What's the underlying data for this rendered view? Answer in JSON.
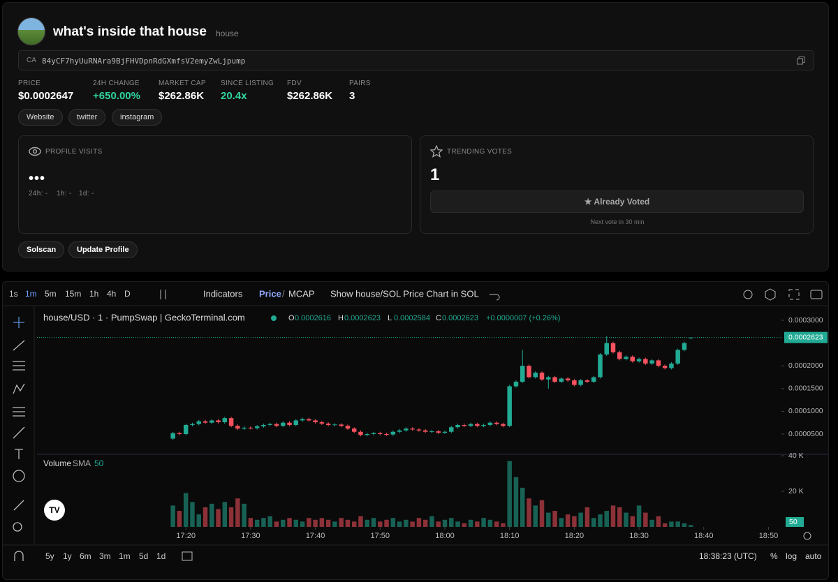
{
  "header": {
    "name": "what's inside that house",
    "ticker": "house",
    "ca_label": "CA",
    "ca": "84yCF7hyUuRNAra9BjFHVDpnRdGXmfsV2emyZwLjpump"
  },
  "stats": [
    {
      "label": "PRICE",
      "value": "$0.0002647"
    },
    {
      "label": "24H CHANGE",
      "value": "+650.00%"
    },
    {
      "label": "MARKET CAP",
      "value": "$262.86K"
    },
    {
      "label": "SINCE LISTING",
      "value": "20.4x"
    },
    {
      "label": "FDV",
      "value": "$262.86K"
    },
    {
      "label": "PAIRS",
      "value": "3"
    }
  ],
  "links": [
    "Website",
    "twitter",
    "instagram"
  ],
  "profile_visits": {
    "title": "PROFILE VISITS",
    "value": "•••",
    "stats": [
      "24h: -",
      "1h: -",
      "1d: -"
    ]
  },
  "trending_votes": {
    "title": "TRENDING VOTES",
    "value": "1",
    "button": "Already Voted",
    "note": "Next vote in 30 min"
  },
  "actions": [
    "Solscan",
    "Update Profile"
  ],
  "chart_toolbar": {
    "intervals": [
      "1s",
      "1m",
      "5m",
      "15m",
      "1h",
      "4h",
      "D"
    ],
    "indicators": "Indicators",
    "price": "Price",
    "separator": "/",
    "mcap": "MCAP",
    "toggle": "Show house/SOL Price Chart in SOL"
  },
  "chart_footer": {
    "ranges": [
      "5y",
      "1y",
      "6m",
      "3m",
      "1m",
      "5d",
      "1d"
    ],
    "time": "18:38:23 (UTC)",
    "percent": "%",
    "log": "log",
    "auto": "auto"
  },
  "chart_data": {
    "type": "candlestick",
    "title": "house/USD · 1 · PumpSwap | GeckoTerminal.com",
    "ohlc": [
      {
        "label": "O",
        "value": "0.0002616"
      },
      {
        "label": "H",
        "value": "0.0002623"
      },
      {
        "label": "L",
        "value": "0.0002584"
      },
      {
        "label": "C",
        "value": "0.0002623"
      }
    ],
    "change": "+0.0000007 (+0.26%)",
    "up_color": "#22ab94",
    "down_color": "#f7525f",
    "last_price_label": "0.0002623",
    "x": [
      "17:18",
      "17:19",
      "17:20",
      "17:21",
      "17:22",
      "17:23",
      "17:24",
      "17:25",
      "17:26",
      "17:27",
      "17:28",
      "17:29",
      "17:30",
      "17:31",
      "17:32",
      "17:33",
      "17:34",
      "17:35",
      "17:36",
      "17:37",
      "17:38",
      "17:39",
      "17:40",
      "17:41",
      "17:42",
      "17:43",
      "17:44",
      "17:45",
      "17:46",
      "17:47",
      "17:48",
      "17:49",
      "17:50",
      "17:51",
      "17:52",
      "17:53",
      "17:54",
      "17:55",
      "17:56",
      "17:57",
      "17:58",
      "17:59",
      "18:00",
      "18:01",
      "18:02",
      "18:03",
      "18:04",
      "18:05",
      "18:06",
      "18:07",
      "18:08",
      "18:09",
      "18:10",
      "18:11",
      "18:12",
      "18:13",
      "18:14",
      "18:15",
      "18:16",
      "18:17",
      "18:18",
      "18:19",
      "18:20",
      "18:21",
      "18:22",
      "18:23",
      "18:24",
      "18:25",
      "18:26",
      "18:27",
      "18:28",
      "18:29",
      "18:30",
      "18:31",
      "18:32",
      "18:33",
      "18:34",
      "18:35",
      "18:36",
      "18:37",
      "18:38"
    ],
    "open": [
      4e-05,
      5.2e-05,
      5e-05,
      7e-05,
      7.2e-05,
      7.8e-05,
      7.5e-05,
      8e-05,
      7.6e-05,
      8.5e-05,
      6.8e-05,
      6.2e-05,
      6.4e-05,
      6.3e-05,
      6.7e-05,
      7e-05,
      7.2e-05,
      6.8e-05,
      7.5e-05,
      7e-05,
      8e-05,
      8.3e-05,
      8e-05,
      7.6e-05,
      7.3e-05,
      7e-05,
      7.1e-05,
      6.8e-05,
      6.2e-05,
      5.5e-05,
      4.8e-05,
      5e-05,
      5.2e-05,
      5e-05,
      4.9e-05,
      5.5e-05,
      5.8e-05,
      6.2e-05,
      6e-05,
      5.8e-05,
      5.5e-05,
      5.6e-05,
      5.3e-05,
      5.5e-05,
      6.5e-05,
      7e-05,
      6.8e-05,
      7.2e-05,
      6.8e-05,
      7e-05,
      7.5e-05,
      7.2e-05,
      6.8e-05,
      0.000155,
      0.000165,
      0.0002,
      0.000175,
      0.000185,
      0.00017,
      0.000175,
      0.000165,
      0.000172,
      0.000168,
      0.000158,
      0.000168,
      0.000165,
      0.000175,
      0.000225,
      0.00025,
      0.00023,
      0.000215,
      0.00022,
      0.00021,
      0.000215,
      0.000205,
      0.000212,
      0.0002,
      0.000195,
      0.000205,
      0.000235,
      0.0002616
    ],
    "high": [
      5.5e-05,
      5.5e-05,
      7.3e-05,
      7.5e-05,
      8.1e-05,
      8.1e-05,
      8.3e-05,
      8.3e-05,
      8.8e-05,
      8.8e-05,
      7.1e-05,
      6.7e-05,
      6.7e-05,
      7e-05,
      7.3e-05,
      7.5e-05,
      7.5e-05,
      7.8e-05,
      7.8e-05,
      8.3e-05,
      8.6e-05,
      8.6e-05,
      8.3e-05,
      7.9e-05,
      7.6e-05,
      7.4e-05,
      7.4e-05,
      7.1e-05,
      6.5e-05,
      5.8e-05,
      5.3e-05,
      5.5e-05,
      5.5e-05,
      5.3e-05,
      5.8e-05,
      6.1e-05,
      6.5e-05,
      6.5e-05,
      6.3e-05,
      6.1e-05,
      5.9e-05,
      5.9e-05,
      5.8e-05,
      6.8e-05,
      7.3e-05,
      7.3e-05,
      7.5e-05,
      7.5e-05,
      7.3e-05,
      7.8e-05,
      7.8e-05,
      7.5e-05,
      0.000158,
      0.000168,
      0.000235,
      0.000203,
      0.000188,
      0.000188,
      0.000178,
      0.000178,
      0.000175,
      0.000175,
      0.000171,
      0.000171,
      0.000171,
      0.000178,
      0.000228,
      0.000265,
      0.000253,
      0.000233,
      0.000223,
      0.000223,
      0.000218,
      0.000218,
      0.000215,
      0.000215,
      0.000203,
      0.000208,
      0.000238,
      0.000253,
      0.0002623
    ],
    "low": [
      3.7e-05,
      4.7e-05,
      4.7e-05,
      6.7e-05,
      6.9e-05,
      7.2e-05,
      7.2e-05,
      7.3e-05,
      7.3e-05,
      6.5e-05,
      5.9e-05,
      5.9e-05,
      6e-05,
      6e-05,
      6.4e-05,
      6.7e-05,
      6.5e-05,
      6.5e-05,
      6.7e-05,
      6.7e-05,
      7.7e-05,
      7.7e-05,
      7.3e-05,
      7e-05,
      6.7e-05,
      6.7e-05,
      6.5e-05,
      5.9e-05,
      5.2e-05,
      4.5e-05,
      4.5e-05,
      4.7e-05,
      4.7e-05,
      4.6e-05,
      4.6e-05,
      5.2e-05,
      5.5e-05,
      5.7e-05,
      5.5e-05,
      5.2e-05,
      5.2e-05,
      5e-05,
      5e-05,
      5.2e-05,
      6.2e-05,
      6.5e-05,
      6.5e-05,
      6.5e-05,
      6.5e-05,
      6.7e-05,
      6.9e-05,
      6.5e-05,
      6.5e-05,
      0.000152,
      0.000162,
      0.000172,
      0.000172,
      0.000167,
      0.00015,
      0.000162,
      0.000162,
      0.000165,
      0.000155,
      0.000155,
      0.000162,
      0.000162,
      0.000172,
      0.000222,
      0.000227,
      0.000212,
      0.000212,
      0.000207,
      0.000207,
      0.000202,
      0.000202,
      0.000197,
      0.000192,
      0.000192,
      0.000202,
      0.000232,
      0.0002584
    ],
    "close": [
      5.2e-05,
      5e-05,
      7e-05,
      7.2e-05,
      7.8e-05,
      7.5e-05,
      8e-05,
      7.6e-05,
      8.5e-05,
      6.8e-05,
      6.2e-05,
      6.4e-05,
      6.3e-05,
      6.7e-05,
      7e-05,
      7.2e-05,
      6.8e-05,
      7.5e-05,
      7e-05,
      8e-05,
      8.3e-05,
      8e-05,
      7.6e-05,
      7.3e-05,
      7e-05,
      7.1e-05,
      6.8e-05,
      6.2e-05,
      5.5e-05,
      4.8e-05,
      5e-05,
      5.2e-05,
      5e-05,
      4.9e-05,
      5.5e-05,
      5.8e-05,
      6.2e-05,
      6e-05,
      5.8e-05,
      5.5e-05,
      5.6e-05,
      5.3e-05,
      5.5e-05,
      6.5e-05,
      7e-05,
      6.8e-05,
      7.2e-05,
      6.8e-05,
      7e-05,
      7.5e-05,
      7.2e-05,
      6.8e-05,
      0.000155,
      0.000165,
      0.0002,
      0.000175,
      0.000185,
      0.00017,
      0.000175,
      0.000165,
      0.000172,
      0.000168,
      0.000158,
      0.000168,
      0.000165,
      0.000175,
      0.000225,
      0.00025,
      0.00023,
      0.000215,
      0.00022,
      0.00021,
      0.000215,
      0.000205,
      0.000212,
      0.0002,
      0.000195,
      0.000205,
      0.000235,
      0.00025,
      0.0002623
    ],
    "xlim": [
      "16:57",
      "18:52"
    ],
    "xticks": [
      "17:20",
      "17:30",
      "17:40",
      "17:50",
      "18:00",
      "18:10",
      "18:20",
      "18:30",
      "18:40",
      "18:50"
    ],
    "ylim": [
      5.5e-06,
      0.00032
    ],
    "yticks": [
      {
        "value": 5e-05,
        "label": "0.0000500"
      },
      {
        "value": 0.0001,
        "label": "0.0001000"
      },
      {
        "value": 0.00015,
        "label": "0.0001500"
      },
      {
        "value": 0.0002,
        "label": "0.0002000"
      },
      {
        "value": 0.0003,
        "label": "0.0003000"
      }
    ],
    "volume": {
      "name": "Volume",
      "sma": "SMA",
      "sma_length": "50",
      "last_label": "50",
      "ylim": [
        0,
        40800
      ],
      "yticks": [
        {
          "value": 20000,
          "label": "20 K"
        },
        {
          "value": 40000,
          "label": "40 K"
        }
      ],
      "values": [
        12000,
        9000,
        19000,
        14000,
        7000,
        11000,
        13000,
        10000,
        14000,
        11000,
        16000,
        13000,
        5000,
        4000,
        5000,
        6000,
        3000,
        4000,
        5000,
        4000,
        3000,
        5000,
        4000,
        5000,
        4000,
        3000,
        5000,
        4000,
        3000,
        6000,
        4000,
        5000,
        3000,
        4000,
        5000,
        3000,
        4000,
        3000,
        5000,
        4000,
        6000,
        3000,
        4000,
        5000,
        3000,
        2000,
        4000,
        3000,
        5000,
        4000,
        3000,
        2000,
        37000,
        28000,
        22000,
        16000,
        12000,
        15000,
        8000,
        9000,
        5000,
        7000,
        6000,
        8000,
        11000,
        5000,
        7000,
        9000,
        12000,
        11000,
        8000,
        6000,
        12000,
        8000,
        4000,
        6000,
        2000,
        3000,
        3000,
        2000,
        1000
      ]
    }
  }
}
